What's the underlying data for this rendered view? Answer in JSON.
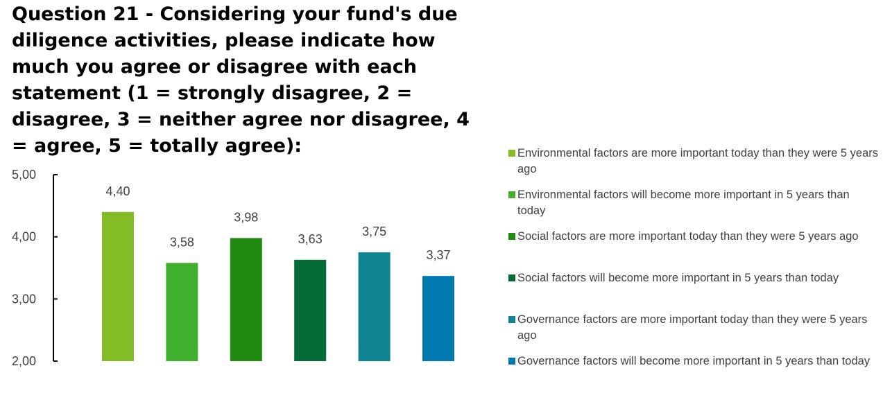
{
  "title": "Question 21 - Considering your fund's due diligence activities, please indicate how much you agree or disagree with each statement (1 = strongly disagree, 2 = disagree, 3 = neither agree nor disagree, 4 = agree, 5 = totally agree):",
  "chart_data": {
    "type": "bar",
    "title": "Question 21 - Considering your fund's due diligence activities, please indicate how much you agree or disagree with each statement (1 = strongly disagree, 2 = disagree, 3 = neither agree nor disagree, 4 = agree, 5 = totally agree):",
    "xlabel": "",
    "ylabel": "",
    "ylim": [
      2,
      5
    ],
    "yticks": [
      "2,00",
      "3,00",
      "4,00",
      "5,00"
    ],
    "grid": false,
    "legend_position": "right",
    "series": [
      {
        "name": "Environmental factors are more important today than they were 5 years ago",
        "value": 4.4,
        "label": "4,40",
        "color": "#84BC26"
      },
      {
        "name": "Environmental factors will become more important in 5 years than today",
        "value": 3.58,
        "label": "3,58",
        "color": "#41AF2E"
      },
      {
        "name": "Social factors are more important today than they were 5 years ago",
        "value": 3.98,
        "label": "3,98",
        "color": "#218A10"
      },
      {
        "name": "Social factors will become more important in 5 years than today",
        "value": 3.63,
        "label": "3,63",
        "color": "#046B36"
      },
      {
        "name": "Governance factors are more important today than they were 5 years ago",
        "value": 3.75,
        "label": "3,75",
        "color": "#0E8490"
      },
      {
        "name": "Governance factors will become more important in 5 years than today",
        "value": 3.37,
        "label": "3,37",
        "color": "#0078B0"
      }
    ]
  }
}
